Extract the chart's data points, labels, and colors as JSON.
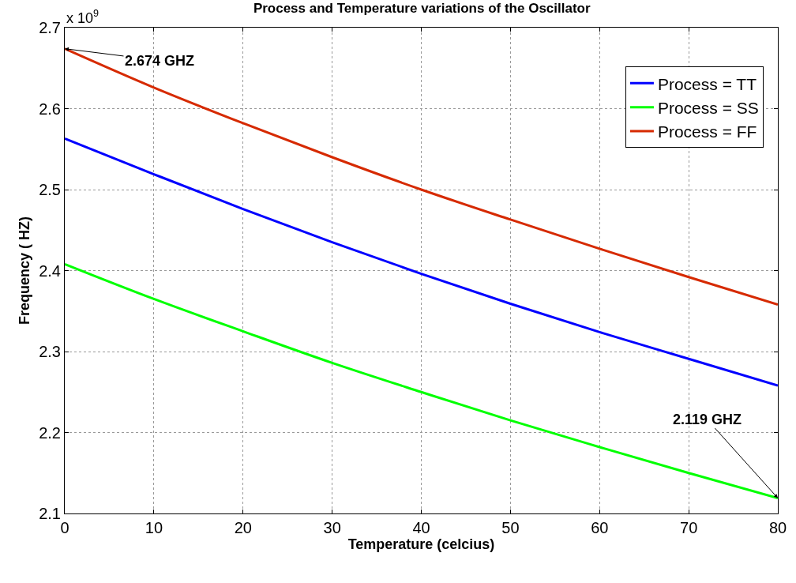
{
  "chart_data": {
    "type": "line",
    "title": "Process and Temperature variations of the Oscillator",
    "xlabel": "Temperature (celcius)",
    "ylabel": "Frequency ( HZ)",
    "x": [
      0,
      10,
      20,
      30,
      40,
      50,
      60,
      70,
      80
    ],
    "series": [
      {
        "name": "Process = TT",
        "color": "#0000ff",
        "values": [
          2.563,
          2.519,
          2.476,
          2.435,
          2.396,
          2.359,
          2.324,
          2.291,
          2.258
        ]
      },
      {
        "name": "Process = SS",
        "color": "#00ff00",
        "values": [
          2.408,
          2.365,
          2.325,
          2.286,
          2.25,
          2.215,
          2.182,
          2.15,
          2.119
        ]
      },
      {
        "name": "Process = FF",
        "color": "#d62a00",
        "values": [
          2.674,
          2.626,
          2.582,
          2.54,
          2.5,
          2.463,
          2.427,
          2.392,
          2.358
        ]
      }
    ],
    "xlim": [
      0,
      80
    ],
    "xticks": [
      0,
      10,
      20,
      30,
      40,
      50,
      60,
      70,
      80
    ],
    "ylim": [
      2.1,
      2.7
    ],
    "yticks": [
      2.1,
      2.2,
      2.3,
      2.4,
      2.5,
      2.6,
      2.7
    ],
    "annotations": [
      "x 10$^{9}$",
      {
        "text": "2.674 GHZ",
        "x": 0,
        "y": 2.674
      },
      {
        "text": "2.119 GHZ",
        "x": 80,
        "y": 2.119
      }
    ],
    "grid": true,
    "legend": "top right",
    "marker": "none",
    "line_style": "solid"
  }
}
